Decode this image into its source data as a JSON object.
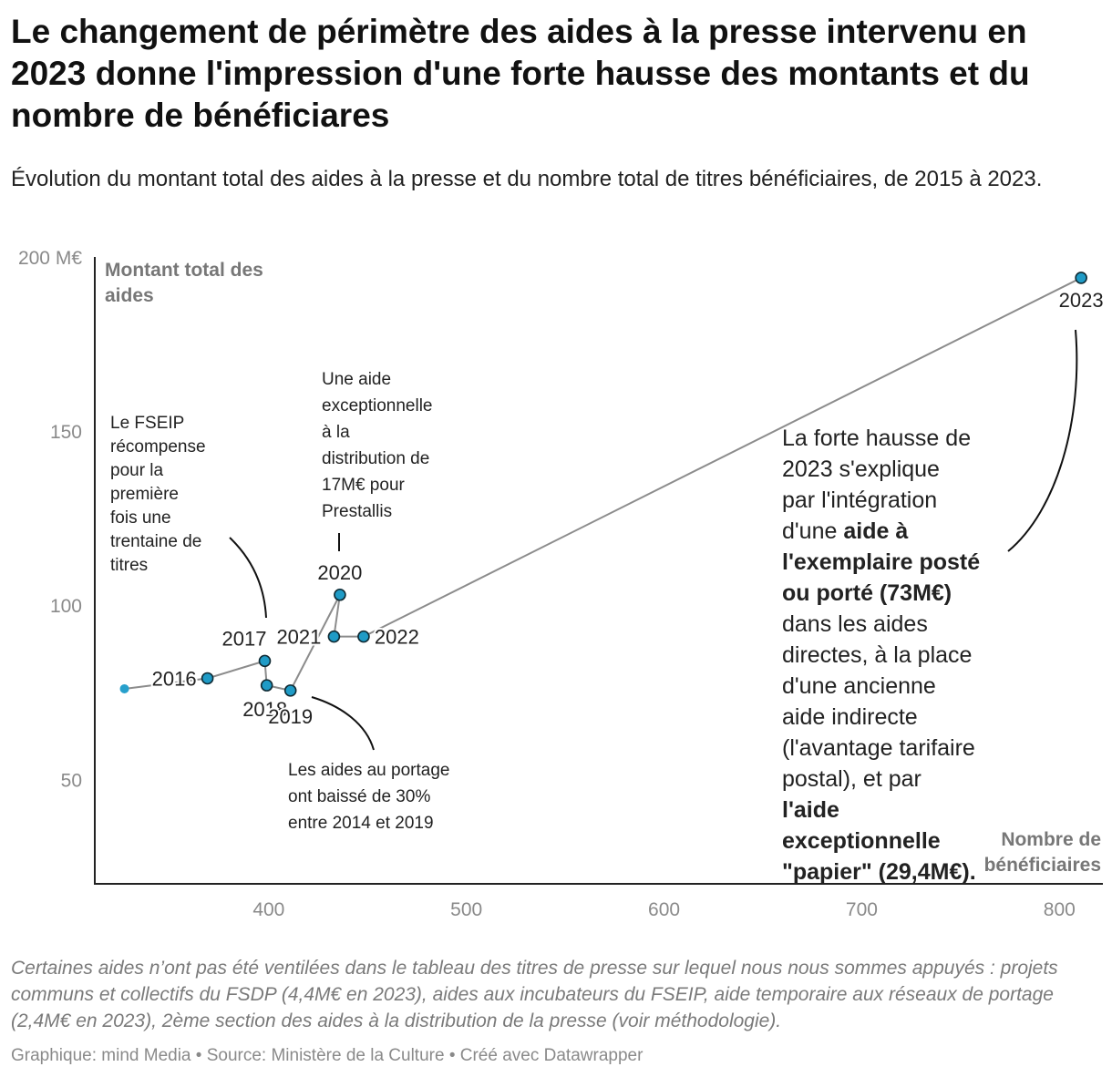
{
  "title": "Le changement de périmètre des aides à la presse intervenu en 2023 donne l'impression d'une forte hausse des montants et du nombre de bénéficiares",
  "subtitle": "Évolution du montant total des aides à la presse et du nombre total de titres bénéficiaires, de 2015 à 2023.",
  "notes": "Certaines aides n’ont pas été ventilées dans le tableau des titres de presse sur lequel nous nous sommes appuyés : projets communs et collectifs du FSDP (4,4M€ en 2023), aides aux incubateurs du FSEIP, aide temporaire aux réseaux de portage (2,4M€ en 2023), 2ème section des aides à la distribution de la presse (voir méthodologie).",
  "byline": "Graphique: mind Media • Source: Ministère de la Culture • Créé avec Datawrapper",
  "colors": {
    "point": "#1f9bc6",
    "point_stroke": "#0f2a33",
    "line": "#8c8c8c",
    "axis": "#222222",
    "start_point": "#27a0cc"
  },
  "chart_data": {
    "type": "scatter",
    "connected": true,
    "xlabel": "Nombre de bénéficiaires",
    "ylabel": "Montant total des aides",
    "xlim": [
      312,
      822
    ],
    "ylim": [
      20,
      200
    ],
    "x_ticks": [
      "400",
      "500",
      "600",
      "700",
      "800"
    ],
    "y_ticks": [
      "200 M€",
      "150",
      "100",
      "50"
    ],
    "grid": false,
    "points": [
      {
        "label": "2015",
        "x": 327,
        "y": 76,
        "labelled": false
      },
      {
        "label": "2016",
        "x": 369,
        "y": 79,
        "labelled": true
      },
      {
        "label": "2017",
        "x": 398,
        "y": 84,
        "labelled": true
      },
      {
        "label": "2018",
        "x": 399,
        "y": 77,
        "labelled": true
      },
      {
        "label": "2019",
        "x": 411,
        "y": 75.5,
        "labelled": true
      },
      {
        "label": "2020",
        "x": 436,
        "y": 103,
        "labelled": true
      },
      {
        "label": "2021",
        "x": 433,
        "y": 91,
        "labelled": true
      },
      {
        "label": "2022",
        "x": 448,
        "y": 91,
        "labelled": true
      },
      {
        "label": "2023",
        "x": 811,
        "y": 194,
        "labelled": true
      }
    ],
    "annotations": [
      {
        "id": "fseip",
        "lines": [
          "Le FSEIP",
          "récompense",
          "pour la",
          "première",
          "fois une",
          "trentaine de",
          "titres"
        ]
      },
      {
        "id": "prestallis",
        "lines": [
          "Une aide",
          "exceptionnelle",
          "à la",
          "distribution de",
          "17M€ pour",
          "Prestallis"
        ]
      },
      {
        "id": "portage",
        "lines": [
          "Les aides au portage",
          "ont baissé de 30%",
          "entre 2014 et 2019"
        ]
      },
      {
        "id": "hausse2023",
        "lines": [
          [
            {
              "t": "La forte hausse de",
              "b": false
            }
          ],
          [
            {
              "t": "2023 s'explique",
              "b": false
            }
          ],
          [
            {
              "t": "par l'intégration",
              "b": false
            }
          ],
          [
            {
              "t": "d'une ",
              "b": false
            },
            {
              "t": "aide à",
              "b": true
            }
          ],
          [
            {
              "t": "l'exemplaire posté",
              "b": true
            }
          ],
          [
            {
              "t": "ou porté (73M€)",
              "b": true
            }
          ],
          [
            {
              "t": "dans les aides",
              "b": false
            }
          ],
          [
            {
              "t": "directes, à la place",
              "b": false
            }
          ],
          [
            {
              "t": "d'une ancienne",
              "b": false
            }
          ],
          [
            {
              "t": "aide indirecte",
              "b": false
            }
          ],
          [
            {
              "t": "(l'avantage tarifaire",
              "b": false
            }
          ],
          [
            {
              "t": "postal), et par",
              "b": false
            }
          ],
          [
            {
              "t": "l'aide",
              "b": true
            }
          ],
          [
            {
              "t": "exceptionnelle",
              "b": true
            }
          ],
          [
            {
              "t": "\"papier\" (29,4M€).",
              "b": true
            }
          ]
        ]
      }
    ]
  }
}
